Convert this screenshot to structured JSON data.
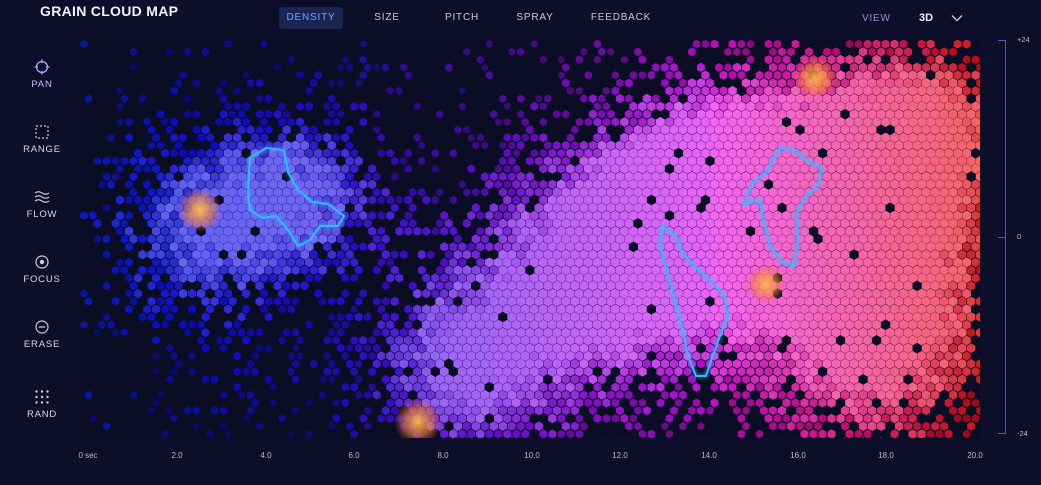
{
  "app": {
    "title": "GRAIN CLOUD MAP"
  },
  "tabs": [
    {
      "label": "DENSITY",
      "active": true
    },
    {
      "label": "SIZE",
      "active": false
    },
    {
      "label": "PITCH",
      "active": false
    },
    {
      "label": "SPRAY",
      "active": false
    },
    {
      "label": "FEEDBACK",
      "active": false
    }
  ],
  "view": {
    "label": "VIEW",
    "value": "3D"
  },
  "tools": [
    {
      "label": "PAN",
      "icon": "crosshair-icon",
      "active": true
    },
    {
      "label": "RANGE",
      "icon": "dashed-square-icon",
      "active": false
    },
    {
      "label": "FLOW",
      "icon": "waves-icon",
      "active": false
    },
    {
      "label": "FOCUS",
      "icon": "target-icon",
      "active": false
    },
    {
      "label": "ERASE",
      "icon": "minus-circle-icon",
      "active": false
    },
    {
      "label": "RAND",
      "icon": "dots-grid-icon",
      "active": false
    }
  ],
  "x_axis": {
    "ticks": [
      "0 sec",
      "2.0",
      "4.0",
      "6.0",
      "8.0",
      "10.0",
      "12.0",
      "14.0",
      "16.0",
      "18.0",
      "20.0"
    ],
    "min": 0,
    "max": 20
  },
  "y_axis": {
    "ticks": [
      "+24",
      "0",
      "-24"
    ],
    "min": -24,
    "max": 24
  },
  "colors": {
    "background": "#0d0f2a",
    "accent": "#4cb3ff",
    "low_density": "#2f3bff",
    "mid_density": "#b23cff",
    "high_density": "#ff3d7a",
    "hotspot": "#ffae3c",
    "outline": "#3cb4ff"
  }
}
